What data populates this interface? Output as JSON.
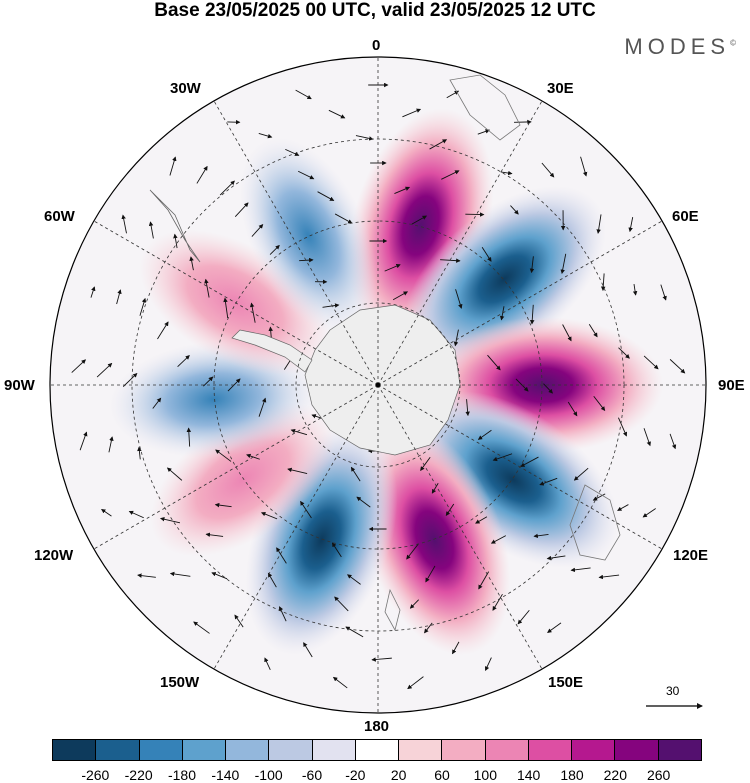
{
  "title": "Base 23/05/2025 00 UTC, valid 23/05/2025 12 UTC",
  "brand": "MODES",
  "brand_mark": "©",
  "longitude_labels": {
    "lon_0": "0",
    "lon_30e": "30E",
    "lon_60e": "60E",
    "lon_90e": "90E",
    "lon_120e": "120E",
    "lon_150e": "150E",
    "lon_180": "180",
    "lon_150w": "150W",
    "lon_120w": "120W",
    "lon_90w": "90W",
    "lon_60w": "60W",
    "lon_30w": "30W"
  },
  "reference_vector_label": "30",
  "colorbar": {
    "colors": [
      "#0d3a5c",
      "#1b5f8e",
      "#3582b8",
      "#5ea1cd",
      "#93b7dc",
      "#bcc9e3",
      "#e2e2f0",
      "#ffffff",
      "#f7d3d8",
      "#f3adc2",
      "#ec85b4",
      "#dd4fa3",
      "#b5188f",
      "#85047e",
      "#54106f"
    ],
    "labels": [
      "-260",
      "-220",
      "-180",
      "-140",
      "-100",
      "-60",
      "-20",
      "20",
      "60",
      "100",
      "140",
      "180",
      "220",
      "260"
    ]
  },
  "anomaly_centers": [
    {
      "lon": 15,
      "value": 230
    },
    {
      "lon": 50,
      "value": -250
    },
    {
      "lon": 90,
      "value": 250
    },
    {
      "lon": 125,
      "value": -250
    },
    {
      "lon": 160,
      "value": 230
    },
    {
      "lon": -160,
      "value": -200
    },
    {
      "lon": -125,
      "value": 110
    },
    {
      "lon": -95,
      "value": -110
    },
    {
      "lon": -60,
      "value": 130
    },
    {
      "lon": -25,
      "value": -150
    }
  ]
}
